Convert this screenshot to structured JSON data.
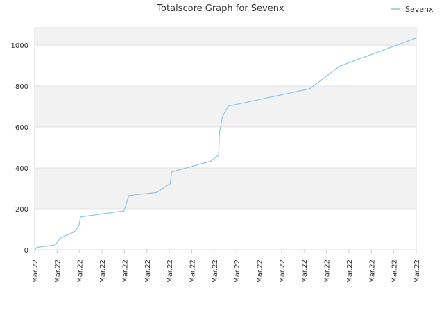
{
  "chart_data": {
    "type": "line",
    "title": "Totalscore Graph for Sevenx",
    "legend": {
      "position": "top-right"
    },
    "series": [
      {
        "name": "Sevenx",
        "color": "#8fc3ea",
        "points": [
          [
            0.0,
            0
          ],
          [
            0.6,
            12
          ],
          [
            5.0,
            22
          ],
          [
            5.6,
            27
          ],
          [
            6.6,
            55
          ],
          [
            7.6,
            65
          ],
          [
            10.4,
            87
          ],
          [
            11.6,
            117
          ],
          [
            12.0,
            160
          ],
          [
            23.4,
            190
          ],
          [
            24.7,
            265
          ],
          [
            32.0,
            280
          ],
          [
            35.5,
            323
          ],
          [
            35.9,
            380
          ],
          [
            46.1,
            433
          ],
          [
            48.2,
            462
          ],
          [
            48.4,
            565
          ],
          [
            49.2,
            650
          ],
          [
            50.7,
            702
          ],
          [
            72.1,
            787
          ],
          [
            80.0,
            898
          ],
          [
            100.0,
            1035
          ]
        ]
      }
    ],
    "y_axis": {
      "min": 0,
      "max": 1085,
      "ticks": [
        0,
        200,
        400,
        600,
        800,
        1000
      ]
    },
    "x_axis": {
      "tick_labels": [
        "Mar.22",
        "Mar.22",
        "Mar.22",
        "Mar.22",
        "Mar.22",
        "Mar.22",
        "Mar.22",
        "Mar.22",
        "Mar.22",
        "Mar.22",
        "Mar.22",
        "Mar.22",
        "Mar.22",
        "Mar.22",
        "Mar.22",
        "Mar.22",
        "Mar.22",
        "Mar.22"
      ],
      "tick_positions": [
        0,
        5.88,
        11.76,
        17.65,
        23.53,
        29.41,
        35.29,
        41.18,
        47.06,
        52.94,
        58.82,
        64.71,
        70.59,
        76.47,
        82.35,
        88.24,
        94.12,
        100
      ]
    },
    "grid": true,
    "band_colors": [
      "#ffffff",
      "#f2f2f2"
    ]
  }
}
